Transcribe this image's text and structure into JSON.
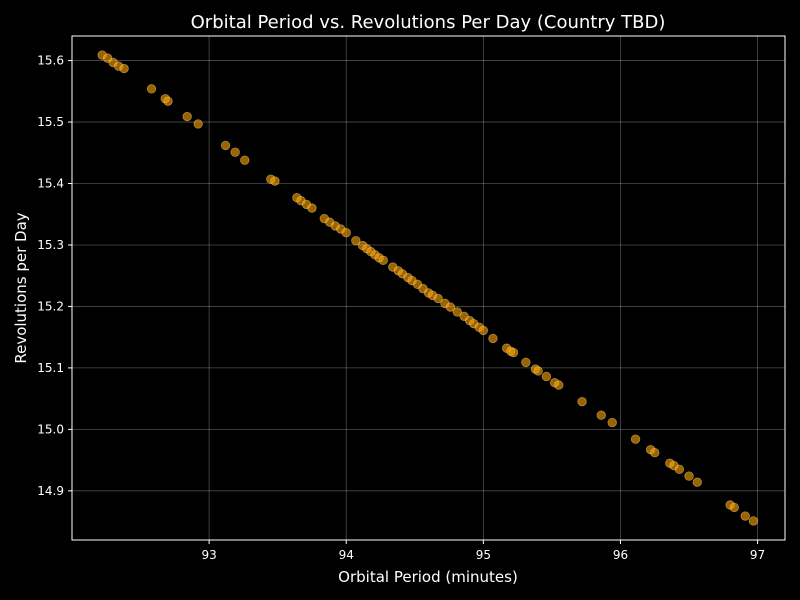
{
  "chart_data": {
    "type": "scatter",
    "title": "Orbital Period vs. Revolutions Per Day (Country TBD)",
    "xlabel": "Orbital Period (minutes)",
    "ylabel": "Revolutions per Day",
    "xlim": [
      92.0,
      97.2
    ],
    "ylim": [
      14.82,
      15.64
    ],
    "xticks": [
      93,
      94,
      95,
      96,
      97
    ],
    "yticks": [
      14.9,
      15.0,
      15.1,
      15.2,
      15.3,
      15.4,
      15.5,
      15.6
    ],
    "grid": true,
    "colors": {
      "background": "#000000",
      "marker": "#FFA500",
      "marker_edge": "#FFD080",
      "text": "#ffffff"
    },
    "x": [
      92.22,
      92.26,
      92.3,
      92.34,
      92.38,
      92.58,
      92.68,
      92.7,
      92.84,
      92.92,
      93.12,
      93.19,
      93.26,
      93.45,
      93.48,
      93.64,
      93.67,
      93.71,
      93.75,
      93.84,
      93.88,
      93.92,
      93.96,
      94.0,
      94.07,
      94.12,
      94.15,
      94.18,
      94.21,
      94.24,
      94.27,
      94.34,
      94.38,
      94.41,
      94.45,
      94.48,
      94.52,
      94.56,
      94.6,
      94.63,
      94.67,
      94.72,
      94.76,
      94.81,
      94.86,
      94.9,
      94.93,
      94.97,
      95.0,
      95.07,
      95.17,
      95.2,
      95.22,
      95.31,
      95.38,
      95.4,
      95.46,
      95.52,
      95.55,
      95.72,
      95.86,
      95.94,
      96.11,
      96.22,
      96.25,
      96.36,
      96.39,
      96.43,
      96.5,
      96.56,
      96.8,
      96.83,
      96.91,
      96.97
    ],
    "y": [
      15.609,
      15.604,
      15.597,
      15.591,
      15.587,
      15.554,
      15.538,
      15.534,
      15.509,
      15.497,
      15.462,
      15.451,
      15.438,
      15.407,
      15.404,
      15.377,
      15.372,
      15.366,
      15.36,
      15.343,
      15.337,
      15.331,
      15.326,
      15.32,
      15.307,
      15.299,
      15.294,
      15.289,
      15.284,
      15.279,
      15.275,
      15.264,
      15.258,
      15.253,
      15.247,
      15.242,
      15.236,
      15.229,
      15.222,
      15.218,
      15.213,
      15.205,
      15.199,
      15.191,
      15.184,
      15.177,
      15.172,
      15.166,
      15.161,
      15.148,
      15.132,
      15.127,
      15.125,
      15.109,
      15.098,
      15.095,
      15.086,
      15.076,
      15.072,
      15.045,
      15.023,
      15.011,
      14.984,
      14.967,
      14.962,
      14.945,
      14.941,
      14.935,
      14.924,
      14.914,
      14.877,
      14.873,
      14.859,
      14.851
    ]
  }
}
